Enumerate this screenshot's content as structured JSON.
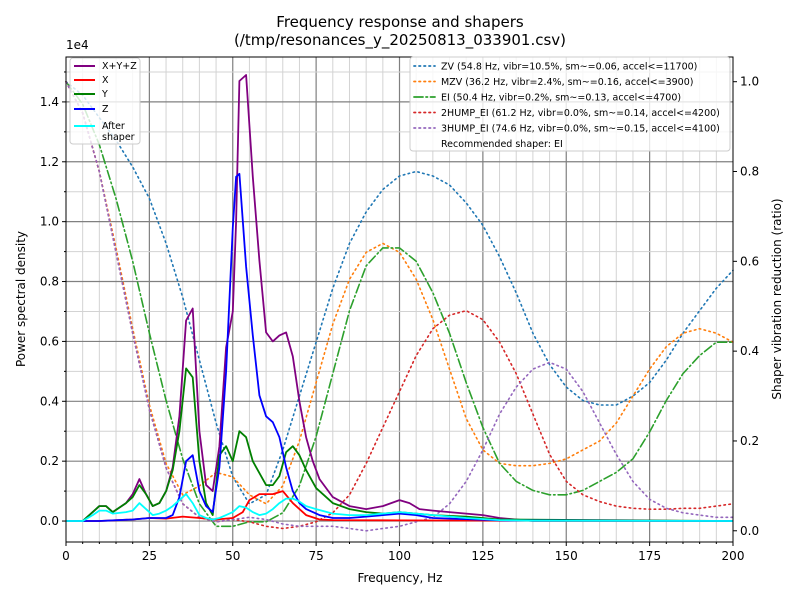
{
  "chart_data": {
    "type": "line",
    "title": "Frequency response and shapers",
    "subtitle": "(/tmp/resonances_y_20250813_033901.csv)",
    "xlabel": "Frequency, Hz",
    "ylabel": "Power spectral density",
    "y2label": "Shaper vibration reduction (ratio)",
    "y_offset_label": "1e4",
    "xlim": [
      0,
      200
    ],
    "ylim": [
      -0.07,
      1.55
    ],
    "y2lim": [
      -0.025,
      1.055
    ],
    "grid": true,
    "x_ticks": [
      "0",
      "25",
      "50",
      "75",
      "100",
      "125",
      "150",
      "175",
      "200"
    ],
    "y_ticks": [
      "0.0",
      "0.2",
      "0.4",
      "0.6",
      "0.8",
      "1.0",
      "1.2",
      "1.4"
    ],
    "y2_ticks": [
      "0.0",
      "0.2",
      "0.4",
      "0.6",
      "0.8",
      "1.0"
    ],
    "psd_legend_placement": "top-left",
    "shaper_legend_placement": "top-right",
    "psd_series": [
      {
        "name": "X+Y+Z",
        "color": "#800080",
        "x": [
          0,
          5,
          8,
          10,
          12,
          14,
          18,
          20,
          22,
          24,
          26,
          28,
          30,
          32,
          34,
          36,
          38,
          40,
          42,
          44,
          46,
          48,
          50,
          51,
          52,
          54,
          56,
          58,
          60,
          62,
          64,
          66,
          68,
          70,
          72,
          74,
          76,
          80,
          85,
          90,
          95,
          100,
          103,
          106,
          110,
          115,
          120,
          125,
          130,
          135,
          140,
          200
        ],
        "y": [
          0,
          0,
          0.03,
          0.05,
          0.05,
          0.03,
          0.06,
          0.09,
          0.14,
          0.09,
          0.05,
          0.06,
          0.1,
          0.18,
          0.35,
          0.67,
          0.71,
          0.3,
          0.12,
          0.1,
          0.25,
          0.58,
          0.7,
          1.0,
          1.47,
          1.49,
          1.15,
          0.87,
          0.63,
          0.6,
          0.62,
          0.63,
          0.55,
          0.4,
          0.28,
          0.2,
          0.14,
          0.08,
          0.05,
          0.04,
          0.05,
          0.07,
          0.06,
          0.04,
          0.035,
          0.03,
          0.025,
          0.02,
          0.01,
          0.005,
          0,
          0
        ]
      },
      {
        "name": "X",
        "color": "#ff0000",
        "x": [
          0,
          10,
          20,
          25,
          30,
          35,
          40,
          45,
          50,
          53,
          55,
          58,
          62,
          65,
          68,
          72,
          76,
          80,
          100,
          200
        ],
        "y": [
          0,
          0,
          0.005,
          0.01,
          0.008,
          0.015,
          0.01,
          0.005,
          0.01,
          0.03,
          0.07,
          0.09,
          0.09,
          0.1,
          0.06,
          0.02,
          0.005,
          0.003,
          0.002,
          0
        ]
      },
      {
        "name": "Y",
        "color": "#008000",
        "x": [
          0,
          5,
          8,
          10,
          12,
          14,
          18,
          20,
          22,
          24,
          26,
          28,
          30,
          32,
          34,
          36,
          38,
          40,
          42,
          44,
          46,
          48,
          50,
          52,
          54,
          56,
          58,
          60,
          62,
          64,
          66,
          68,
          70,
          72,
          75,
          80,
          85,
          90,
          95,
          100,
          105,
          110,
          120,
          130,
          200
        ],
        "y": [
          0,
          0,
          0.03,
          0.05,
          0.05,
          0.03,
          0.06,
          0.08,
          0.12,
          0.09,
          0.05,
          0.06,
          0.1,
          0.17,
          0.3,
          0.51,
          0.48,
          0.2,
          0.06,
          0.02,
          0.22,
          0.25,
          0.2,
          0.3,
          0.28,
          0.2,
          0.16,
          0.12,
          0.12,
          0.15,
          0.23,
          0.25,
          0.22,
          0.17,
          0.11,
          0.06,
          0.04,
          0.03,
          0.025,
          0.03,
          0.025,
          0.02,
          0.015,
          0.005,
          0
        ]
      },
      {
        "name": "Z",
        "color": "#0000ff",
        "x": [
          0,
          10,
          20,
          25,
          30,
          32,
          34,
          36,
          38,
          40,
          42,
          44,
          46,
          48,
          50,
          51,
          52,
          54,
          56,
          58,
          60,
          62,
          64,
          66,
          68,
          70,
          72,
          74,
          76,
          80,
          85,
          90,
          95,
          100,
          105,
          110,
          130,
          200
        ],
        "y": [
          0,
          0,
          0.005,
          0.01,
          0.01,
          0.02,
          0.08,
          0.2,
          0.22,
          0.1,
          0.05,
          0.03,
          0.18,
          0.5,
          0.98,
          1.15,
          1.16,
          0.85,
          0.62,
          0.42,
          0.35,
          0.33,
          0.28,
          0.18,
          0.1,
          0.06,
          0.04,
          0.03,
          0.02,
          0.01,
          0.01,
          0.015,
          0.02,
          0.025,
          0.02,
          0.01,
          0.002,
          0
        ]
      },
      {
        "name": "After\nshaper",
        "color": "#00ffff",
        "x": [
          0,
          5,
          8,
          10,
          12,
          14,
          18,
          20,
          22,
          24,
          26,
          28,
          30,
          32,
          34,
          36,
          38,
          40,
          42,
          44,
          46,
          48,
          50,
          52,
          54,
          56,
          58,
          60,
          62,
          64,
          66,
          68,
          70,
          72,
          75,
          80,
          85,
          90,
          95,
          100,
          105,
          110,
          120,
          130,
          140,
          200
        ],
        "y": [
          0,
          0,
          0.02,
          0.035,
          0.035,
          0.025,
          0.03,
          0.035,
          0.06,
          0.04,
          0.02,
          0.025,
          0.035,
          0.05,
          0.07,
          0.09,
          0.06,
          0.02,
          0.01,
          0.005,
          0.01,
          0.02,
          0.03,
          0.05,
          0.045,
          0.03,
          0.02,
          0.025,
          0.04,
          0.06,
          0.075,
          0.075,
          0.065,
          0.05,
          0.04,
          0.025,
          0.02,
          0.02,
          0.025,
          0.03,
          0.025,
          0.02,
          0.01,
          0.003,
          0.001,
          0
        ]
      }
    ],
    "shaper_series": [
      {
        "name": "ZV (54.8 Hz, vibr=10.5%, sm~=0.06, accel<=11700)",
        "color": "#1f77b4",
        "style": "dotted",
        "x": [
          0,
          5,
          10,
          15,
          20,
          25,
          30,
          35,
          40,
          45,
          50,
          55,
          60,
          65,
          70,
          75,
          80,
          85,
          90,
          95,
          100,
          105,
          110,
          115,
          120,
          125,
          130,
          135,
          140,
          145,
          150,
          155,
          160,
          165,
          170,
          175,
          180,
          185,
          190,
          195,
          200
        ],
        "y": [
          1.0,
          0.97,
          0.92,
          0.87,
          0.81,
          0.74,
          0.64,
          0.52,
          0.38,
          0.24,
          0.12,
          0.06,
          0.08,
          0.18,
          0.3,
          0.42,
          0.54,
          0.64,
          0.71,
          0.76,
          0.79,
          0.8,
          0.79,
          0.77,
          0.73,
          0.68,
          0.61,
          0.53,
          0.44,
          0.37,
          0.32,
          0.29,
          0.28,
          0.28,
          0.3,
          0.33,
          0.38,
          0.44,
          0.49,
          0.54,
          0.58
        ]
      },
      {
        "name": "MZV (36.2 Hz, vibr=2.4%, sm~=0.16, accel<=3900)",
        "color": "#ff7f0e",
        "style": "dotted",
        "x": [
          0,
          5,
          10,
          15,
          20,
          25,
          30,
          35,
          40,
          45,
          50,
          55,
          60,
          65,
          70,
          75,
          80,
          85,
          90,
          95,
          100,
          105,
          110,
          115,
          120,
          125,
          130,
          135,
          140,
          145,
          150,
          155,
          160,
          165,
          170,
          175,
          180,
          185,
          190,
          195,
          200
        ],
        "y": [
          1.0,
          0.93,
          0.8,
          0.63,
          0.45,
          0.28,
          0.15,
          0.08,
          0.1,
          0.13,
          0.12,
          0.08,
          0.06,
          0.1,
          0.2,
          0.33,
          0.46,
          0.56,
          0.62,
          0.64,
          0.62,
          0.56,
          0.47,
          0.36,
          0.25,
          0.18,
          0.15,
          0.145,
          0.145,
          0.15,
          0.16,
          0.18,
          0.2,
          0.24,
          0.3,
          0.36,
          0.41,
          0.44,
          0.45,
          0.44,
          0.42
        ]
      },
      {
        "name": "EI (50.4 Hz, vibr=0.2%, sm~=0.13, accel<=4700)",
        "color": "#2ca02c",
        "style": "dashdot",
        "x": [
          0,
          5,
          10,
          15,
          20,
          25,
          30,
          35,
          40,
          45,
          50,
          55,
          60,
          65,
          70,
          75,
          80,
          85,
          90,
          95,
          100,
          105,
          110,
          115,
          120,
          125,
          130,
          135,
          140,
          145,
          150,
          155,
          160,
          165,
          170,
          175,
          180,
          185,
          190,
          195,
          200
        ],
        "y": [
          1.0,
          0.95,
          0.86,
          0.74,
          0.6,
          0.44,
          0.29,
          0.16,
          0.06,
          0.01,
          0.01,
          0.02,
          0.02,
          0.04,
          0.1,
          0.21,
          0.35,
          0.49,
          0.59,
          0.63,
          0.63,
          0.6,
          0.53,
          0.44,
          0.33,
          0.23,
          0.15,
          0.11,
          0.09,
          0.08,
          0.08,
          0.09,
          0.11,
          0.13,
          0.16,
          0.22,
          0.29,
          0.35,
          0.39,
          0.42,
          0.42
        ]
      },
      {
        "name": "2HUMP_EI (61.2 Hz, vibr=0.0%, sm~=0.14, accel<=4200)",
        "color": "#d62728",
        "style": "dotted",
        "x": [
          0,
          5,
          10,
          15,
          20,
          25,
          30,
          35,
          40,
          45,
          50,
          55,
          60,
          65,
          70,
          75,
          80,
          85,
          90,
          95,
          100,
          105,
          110,
          115,
          120,
          125,
          130,
          135,
          140,
          145,
          150,
          155,
          160,
          165,
          170,
          175,
          180,
          185,
          190,
          195,
          200
        ],
        "y": [
          1.0,
          0.93,
          0.8,
          0.62,
          0.44,
          0.27,
          0.14,
          0.06,
          0.03,
          0.02,
          0.025,
          0.02,
          0.01,
          0.005,
          0.01,
          0.02,
          0.04,
          0.08,
          0.15,
          0.23,
          0.31,
          0.39,
          0.45,
          0.48,
          0.49,
          0.47,
          0.42,
          0.35,
          0.26,
          0.17,
          0.11,
          0.08,
          0.065,
          0.055,
          0.05,
          0.048,
          0.048,
          0.05,
          0.05,
          0.055,
          0.06
        ]
      },
      {
        "name": "3HUMP_EI (74.6 Hz, vibr=0.0%, sm~=0.15, accel<=4100)",
        "color": "#9467bd",
        "style": "dotted",
        "x": [
          0,
          5,
          10,
          15,
          20,
          25,
          30,
          35,
          40,
          45,
          50,
          55,
          60,
          65,
          70,
          75,
          80,
          85,
          90,
          95,
          100,
          105,
          110,
          115,
          120,
          125,
          130,
          135,
          140,
          145,
          150,
          155,
          160,
          165,
          170,
          175,
          180,
          185,
          190,
          195,
          200
        ],
        "y": [
          1.0,
          0.93,
          0.8,
          0.62,
          0.44,
          0.27,
          0.14,
          0.06,
          0.03,
          0.02,
          0.025,
          0.03,
          0.025,
          0.015,
          0.01,
          0.01,
          0.01,
          0.005,
          0.0,
          0.005,
          0.01,
          0.02,
          0.03,
          0.06,
          0.11,
          0.18,
          0.26,
          0.32,
          0.36,
          0.375,
          0.36,
          0.31,
          0.24,
          0.17,
          0.11,
          0.07,
          0.05,
          0.04,
          0.035,
          0.03,
          0.03
        ]
      }
    ],
    "recommended_text": "Recommended shaper: EI"
  }
}
